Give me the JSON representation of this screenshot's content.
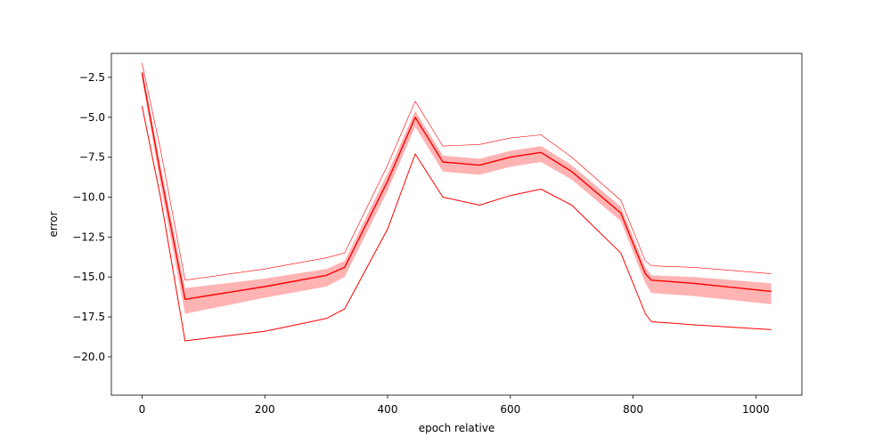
{
  "chart_data": {
    "type": "line",
    "title": "",
    "xlabel": "epoch relative",
    "ylabel": "error",
    "xlim": [
      -50,
      1075
    ],
    "ylim": [
      -22.4,
      -1.0
    ],
    "xticks": [
      0,
      200,
      400,
      600,
      800,
      1000
    ],
    "yticks": [
      -2.5,
      -5.0,
      -7.5,
      -10.0,
      -12.5,
      -15.0,
      -17.5,
      -20.0
    ],
    "xtick_labels": [
      "0",
      "200",
      "400",
      "600",
      "800",
      "1000"
    ],
    "ytick_labels": [
      "−2.5",
      "−5.0",
      "−7.5",
      "−10.0",
      "−12.5",
      "−15.0",
      "−17.5",
      "−20.0"
    ],
    "grid": false,
    "legend": "none",
    "colors": {
      "line": "#ff0000",
      "band": "#ffb3b3"
    },
    "x": [
      0,
      30,
      70,
      200,
      300,
      330,
      400,
      445,
      490,
      550,
      600,
      650,
      700,
      780,
      820,
      830,
      900,
      1025
    ],
    "series": [
      {
        "role": "upper",
        "values": [
          -1.6,
          -7.0,
          -15.2,
          -14.5,
          -13.8,
          -13.5,
          -8.0,
          -4.0,
          -6.8,
          -6.7,
          -6.3,
          -6.1,
          -7.5,
          -10.2,
          -14.0,
          -14.3,
          -14.4,
          -14.8
        ]
      },
      {
        "role": "mean",
        "values": [
          -2.2,
          -8.5,
          -16.4,
          -15.6,
          -14.9,
          -14.4,
          -9.0,
          -5.0,
          -7.8,
          -8.0,
          -7.5,
          -7.2,
          -8.4,
          -11.0,
          -14.8,
          -15.2,
          -15.4,
          -15.9
        ]
      },
      {
        "role": "band_upper",
        "values": [
          -1.9,
          -8.0,
          -15.7,
          -15.1,
          -14.5,
          -14.0,
          -8.5,
          -4.6,
          -7.4,
          -7.6,
          -7.1,
          -6.8,
          -8.0,
          -10.6,
          -14.4,
          -14.9,
          -15.0,
          -15.4
        ]
      },
      {
        "role": "band_lower",
        "values": [
          -2.6,
          -9.2,
          -17.3,
          -16.3,
          -15.6,
          -15.0,
          -9.6,
          -5.6,
          -8.4,
          -8.6,
          -8.1,
          -7.8,
          -8.9,
          -11.5,
          -15.4,
          -16.0,
          -16.2,
          -16.7
        ]
      },
      {
        "role": "lower",
        "values": [
          -4.3,
          -10.0,
          -19.0,
          -18.4,
          -17.6,
          -17.0,
          -12.0,
          -7.3,
          -10.0,
          -10.5,
          -9.9,
          -9.5,
          -10.5,
          -13.5,
          -17.3,
          -17.8,
          -18.0,
          -18.3
        ]
      }
    ]
  }
}
